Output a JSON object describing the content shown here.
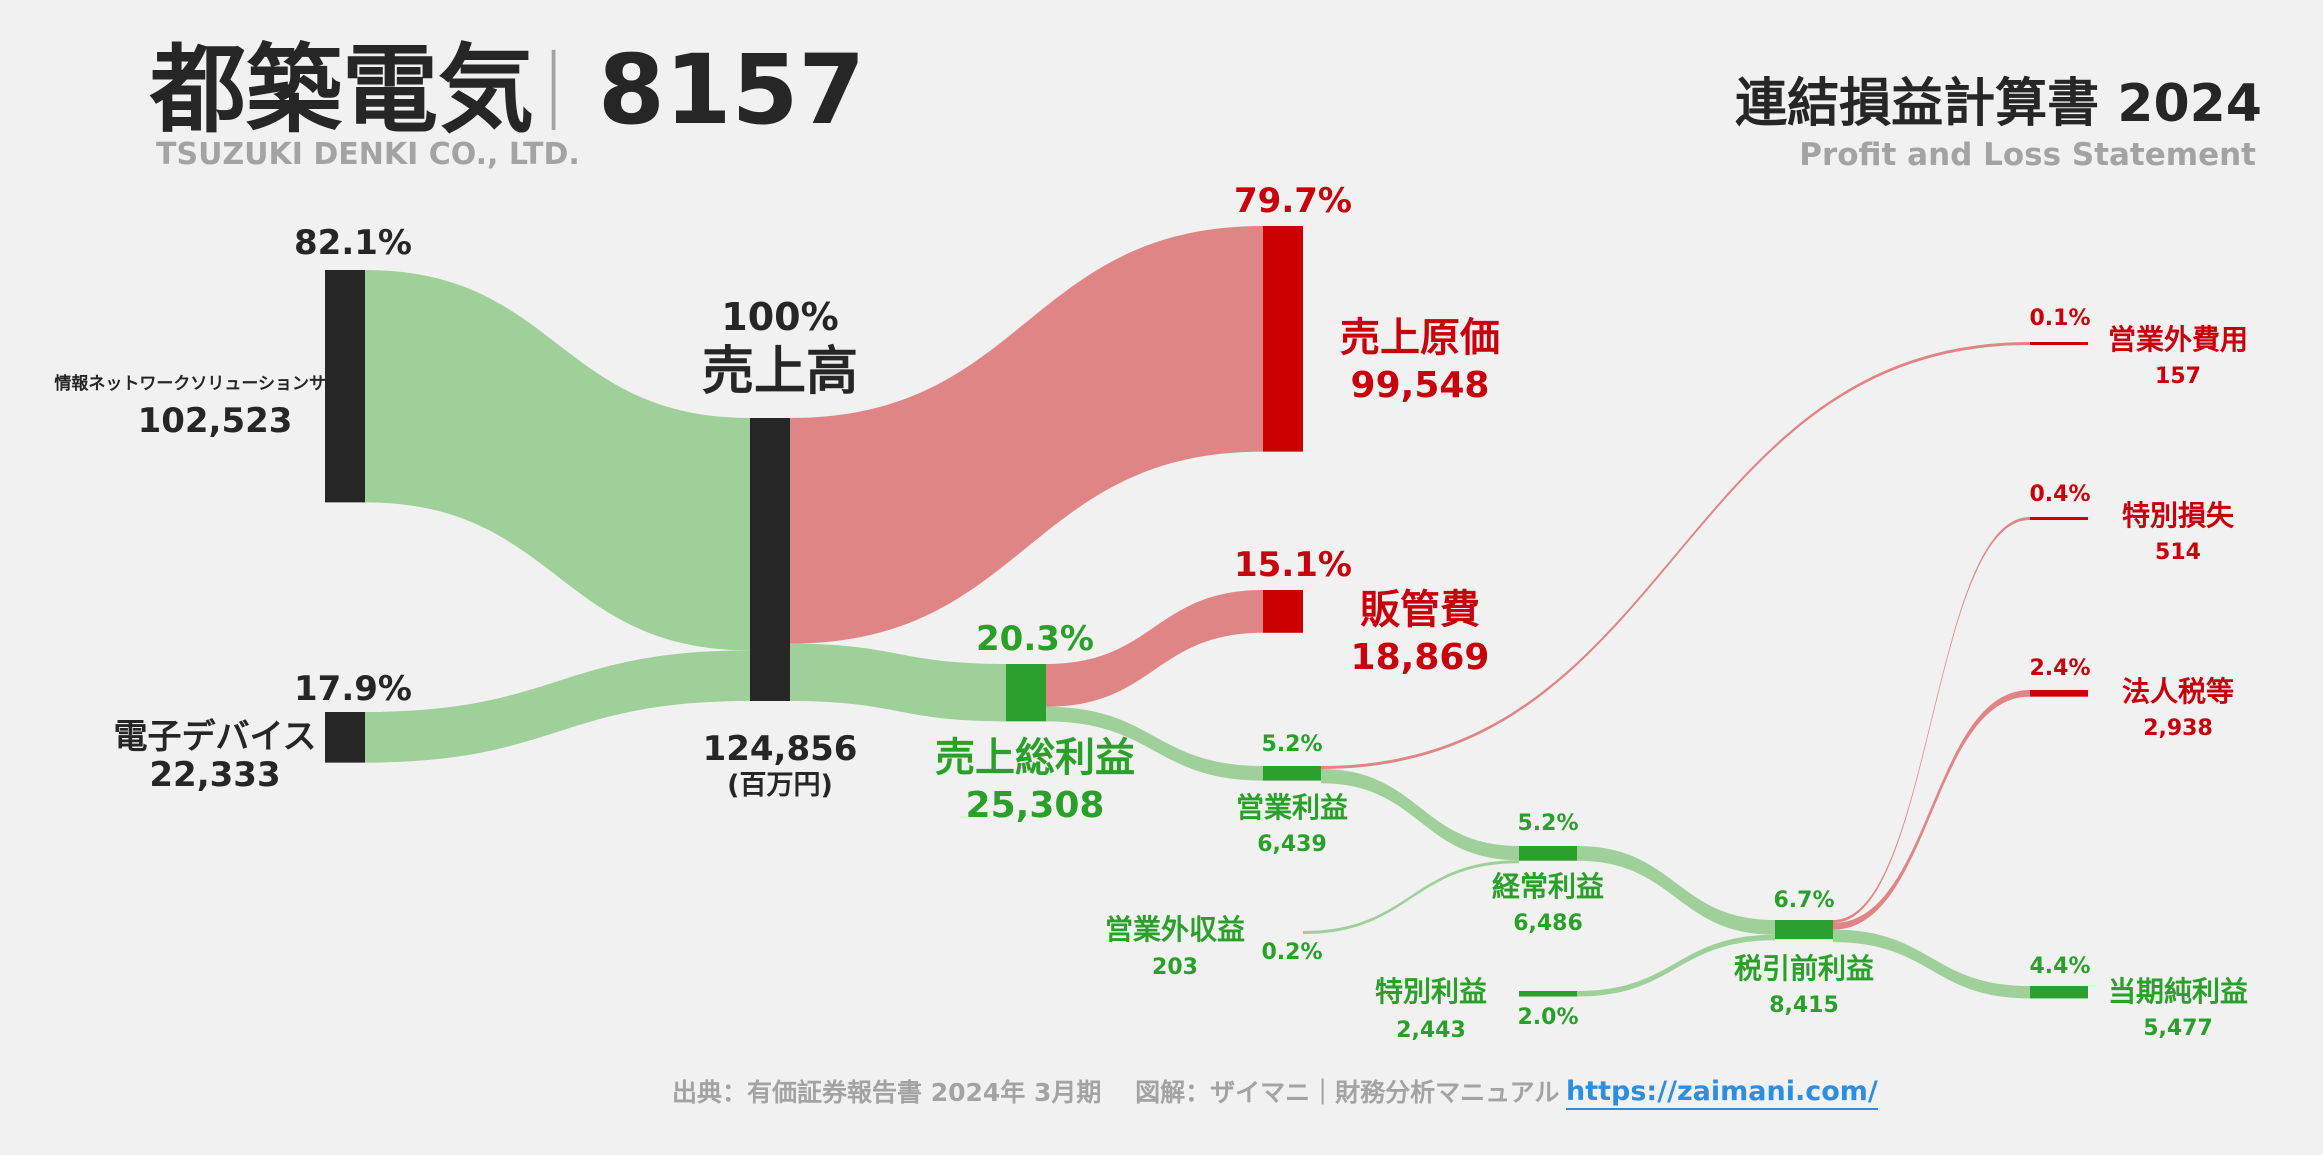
{
  "header": {
    "company": "都築電気",
    "separator": "|",
    "code": "8157",
    "company_en": "TSUZUKI DENKI CO., LTD.",
    "statement": "連結損益計算書 2024",
    "statement_en": "Profit and Loss Statement"
  },
  "footer": {
    "source": "出典：有価証券報告書 2024年 3月期　 図解：ザイマニ｜財務分析マニュアル",
    "url": "https://zaimani.com/"
  },
  "colors": {
    "dark": "#262626",
    "gray_flow": "#a0a0a0",
    "red": "#cc0000",
    "red_flow": "#e08585",
    "green": "#2ca02c",
    "green_flow": "#9fd09a"
  },
  "chart_data": {
    "type": "sankey",
    "unit": "(百万円)",
    "nodes": [
      {
        "id": "info",
        "label": "情報ネットワークソリューションサ",
        "value": 102523,
        "value_label": "102,523",
        "pct": "82.1%"
      },
      {
        "id": "elec",
        "label": "電子デバイス",
        "value": 22333,
        "value_label": "22,333",
        "pct": "17.9%"
      },
      {
        "id": "sales",
        "label": "売上高",
        "value": 124856,
        "value_label": "124,856",
        "pct": "100%"
      },
      {
        "id": "cogs",
        "label": "売上原価",
        "value": 99548,
        "value_label": "99,548",
        "pct": "79.7%"
      },
      {
        "id": "gross",
        "label": "売上総利益",
        "value": 25308,
        "value_label": "25,308",
        "pct": "20.3%"
      },
      {
        "id": "sga",
        "label": "販管費",
        "value": 18869,
        "value_label": "18,869",
        "pct": "15.1%"
      },
      {
        "id": "op",
        "label": "営業利益",
        "value": 6439,
        "value_label": "6,439",
        "pct": "5.2%"
      },
      {
        "id": "nonop_inc",
        "label": "営業外収益",
        "value": 203,
        "value_label": "203",
        "pct": "0.2%"
      },
      {
        "id": "nonop_exp",
        "label": "営業外費用",
        "value": 157,
        "value_label": "157",
        "pct": "0.1%"
      },
      {
        "id": "ord",
        "label": "経常利益",
        "value": 6486,
        "value_label": "6,486",
        "pct": "5.2%"
      },
      {
        "id": "sp_inc",
        "label": "特別利益",
        "value": 2443,
        "value_label": "2,443",
        "pct": "2.0%"
      },
      {
        "id": "sp_loss",
        "label": "特別損失",
        "value": 514,
        "value_label": "514",
        "pct": "0.4%"
      },
      {
        "id": "pretax",
        "label": "税引前利益",
        "value": 8415,
        "value_label": "8,415",
        "pct": "6.7%"
      },
      {
        "id": "tax",
        "label": "法人税等",
        "value": 2938,
        "value_label": "2,938",
        "pct": "2.4%"
      },
      {
        "id": "net",
        "label": "当期純利益",
        "value": 5477,
        "value_label": "5,477",
        "pct": "4.4%"
      }
    ],
    "links": [
      {
        "source": "info",
        "target": "sales",
        "value": 102523
      },
      {
        "source": "elec",
        "target": "sales",
        "value": 22333
      },
      {
        "source": "sales",
        "target": "cogs",
        "value": 99548
      },
      {
        "source": "sales",
        "target": "gross",
        "value": 25308
      },
      {
        "source": "gross",
        "target": "sga",
        "value": 18869
      },
      {
        "source": "gross",
        "target": "op",
        "value": 6439
      },
      {
        "source": "op",
        "target": "nonop_exp",
        "value": 157
      },
      {
        "source": "op",
        "target": "ord",
        "value": 6282
      },
      {
        "source": "nonop_inc",
        "target": "ord",
        "value": 203
      },
      {
        "source": "ord",
        "target": "pretax",
        "value": 6486
      },
      {
        "source": "sp_inc",
        "target": "pretax",
        "value": 2443
      },
      {
        "source": "pretax",
        "target": "sp_loss",
        "value": 514
      },
      {
        "source": "pretax",
        "target": "tax",
        "value": 2938
      },
      {
        "source": "pretax",
        "target": "net",
        "value": 5477
      }
    ]
  }
}
